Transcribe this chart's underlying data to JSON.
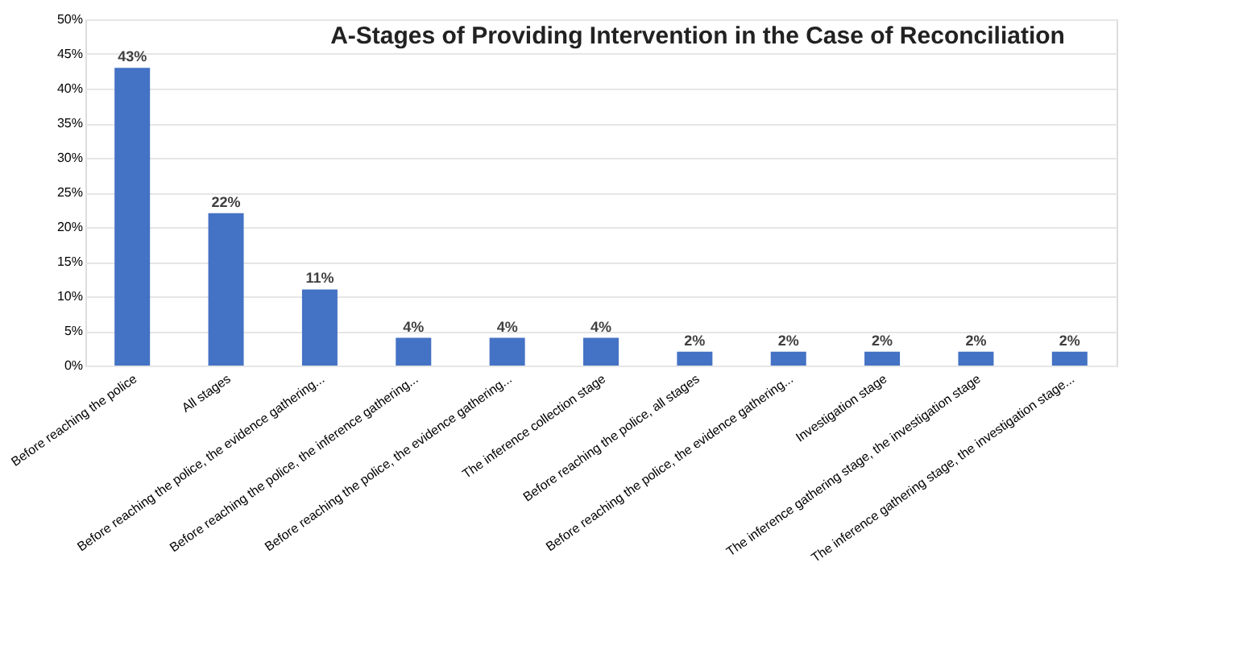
{
  "chart_data": {
    "type": "bar",
    "title": "A-Stages of Providing Intervention in the Case of Reconciliation",
    "categories": [
      "Before reaching the police",
      "All stages",
      "Before reaching the police, the evidence gathering...",
      "Before reaching the police, the inference gathering...",
      "Before reaching the police, the evidence gathering...",
      "The inference collection stage",
      "Before reaching the police, all stages",
      "Before reaching the police, the evidence gathering...",
      "Investigation stage",
      "The inference gathering stage, the investigation stage",
      "The inference gathering stage, the investigation stage..."
    ],
    "values": [
      43,
      22,
      11,
      4,
      4,
      4,
      2,
      2,
      2,
      2,
      2
    ],
    "value_labels": [
      "43%",
      "22%",
      "11%",
      "4%",
      "4%",
      "4%",
      "2%",
      "2%",
      "2%",
      "2%",
      "2%"
    ],
    "color": "#4472c4",
    "ylim": [
      0,
      50
    ],
    "yticks": [
      {
        "value": 0,
        "label": "0%"
      },
      {
        "value": 5,
        "label": "5%"
      },
      {
        "value": 10,
        "label": "10%"
      },
      {
        "value": 15,
        "label": "15%"
      },
      {
        "value": 20,
        "label": "20%"
      },
      {
        "value": 25,
        "label": "25%"
      },
      {
        "value": 30,
        "label": "30%"
      },
      {
        "value": 35,
        "label": "35%"
      },
      {
        "value": 40,
        "label": "40%"
      },
      {
        "value": 45,
        "label": "45%"
      },
      {
        "value": 50,
        "label": "50%"
      }
    ],
    "grid": "y"
  }
}
